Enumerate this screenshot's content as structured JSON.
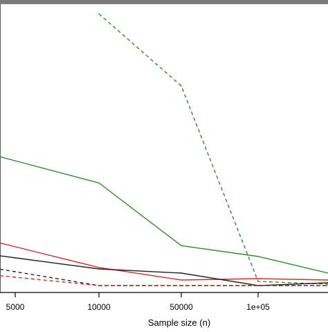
{
  "chart_data": {
    "type": "line",
    "xlabel": "Sample size (n)",
    "x_scale": "log",
    "x": [
      5000,
      10000,
      50000,
      100000,
      200000
    ],
    "x_ticks": [
      {
        "value": 5000,
        "label": "5000"
      },
      {
        "value": 10000,
        "label": "10000"
      },
      {
        "value": 50000,
        "label": "50000"
      },
      {
        "value": 100000,
        "label": "1e+05"
      }
    ],
    "xlim": [
      4000,
      200000
    ],
    "ylim": [
      0,
      1
    ],
    "grid": false,
    "series": [
      {
        "color": "#2e8b2e",
        "style": "dashed",
        "values": [
          null,
          0.98,
          0.72,
          0.015,
          0.005
        ]
      },
      {
        "color": "#2e8b2e",
        "style": "solid",
        "values": [
          0.45,
          0.37,
          0.144,
          0.105,
          0.045
        ]
      },
      {
        "color": "#cc2a2a",
        "style": "solid",
        "values": [
          0.14,
          0.065,
          0.02,
          0.025,
          0.02
        ]
      },
      {
        "color": "#222222",
        "style": "solid",
        "values": [
          0.1,
          0.06,
          0.045,
          0.0,
          0.01
        ]
      },
      {
        "color": "#222222",
        "style": "dashed",
        "values": [
          0.05,
          0.0,
          0.0,
          0.0,
          0.0
        ]
      },
      {
        "color": "#cc2a2a",
        "style": "dashed",
        "values": [
          0.03,
          0.0,
          0.0,
          0.0,
          0.0
        ]
      }
    ]
  }
}
